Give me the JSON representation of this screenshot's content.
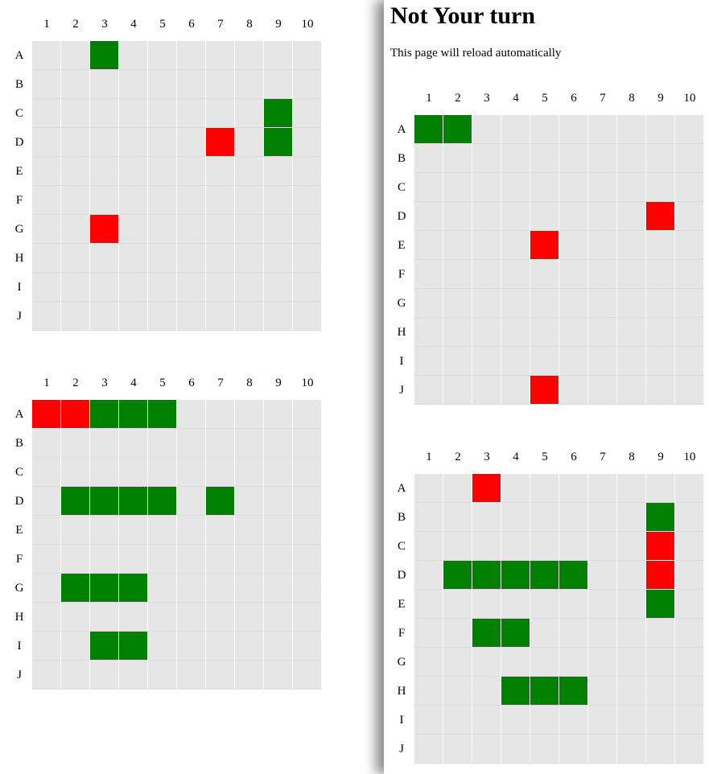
{
  "left_pane": {
    "boards": [
      {
        "columns": [
          "1",
          "2",
          "3",
          "4",
          "5",
          "6",
          "7",
          "8",
          "9",
          "10"
        ],
        "rows": [
          "A",
          "B",
          "C",
          "D",
          "E",
          "F",
          "G",
          "H",
          "I",
          "J"
        ],
        "cells": [
          [
            "",
            "",
            "ship",
            "",
            "",
            "",
            "",
            "",
            "",
            ""
          ],
          [
            "",
            "",
            "",
            "",
            "",
            "",
            "",
            "",
            "",
            ""
          ],
          [
            "",
            "",
            "",
            "",
            "",
            "",
            "",
            "",
            "ship",
            ""
          ],
          [
            "",
            "",
            "",
            "",
            "",
            "",
            "hit",
            "",
            "ship",
            ""
          ],
          [
            "",
            "",
            "",
            "",
            "",
            "",
            "",
            "",
            "",
            ""
          ],
          [
            "",
            "",
            "",
            "",
            "",
            "",
            "",
            "",
            "",
            ""
          ],
          [
            "",
            "",
            "hit",
            "",
            "",
            "",
            "",
            "",
            "",
            ""
          ],
          [
            "",
            "",
            "",
            "",
            "",
            "",
            "",
            "",
            "",
            ""
          ],
          [
            "",
            "",
            "",
            "",
            "",
            "",
            "",
            "",
            "",
            ""
          ],
          [
            "",
            "",
            "",
            "",
            "",
            "",
            "",
            "",
            "",
            ""
          ]
        ]
      },
      {
        "columns": [
          "1",
          "2",
          "3",
          "4",
          "5",
          "6",
          "7",
          "8",
          "9",
          "10"
        ],
        "rows": [
          "A",
          "B",
          "C",
          "D",
          "E",
          "F",
          "G",
          "H",
          "I",
          "J"
        ],
        "cells": [
          [
            "hit",
            "hit",
            "ship",
            "ship",
            "ship",
            "",
            "",
            "",
            "",
            ""
          ],
          [
            "",
            "",
            "",
            "",
            "",
            "",
            "",
            "",
            "",
            ""
          ],
          [
            "",
            "",
            "",
            "",
            "",
            "",
            "",
            "",
            "",
            ""
          ],
          [
            "",
            "ship",
            "ship",
            "ship",
            "ship",
            "",
            "ship",
            "",
            "",
            ""
          ],
          [
            "",
            "",
            "",
            "",
            "",
            "",
            "",
            "",
            "",
            ""
          ],
          [
            "",
            "",
            "",
            "",
            "",
            "",
            "",
            "",
            "",
            ""
          ],
          [
            "",
            "ship",
            "ship",
            "ship",
            "",
            "",
            "",
            "",
            "",
            ""
          ],
          [
            "",
            "",
            "",
            "",
            "",
            "",
            "",
            "",
            "",
            ""
          ],
          [
            "",
            "",
            "ship",
            "ship",
            "",
            "",
            "",
            "",
            "",
            ""
          ],
          [
            "",
            "",
            "",
            "",
            "",
            "",
            "",
            "",
            "",
            ""
          ]
        ]
      }
    ]
  },
  "right_pane": {
    "title": "Not Your turn",
    "subtitle": "This page will reload automatically",
    "boards": [
      {
        "columns": [
          "1",
          "2",
          "3",
          "4",
          "5",
          "6",
          "7",
          "8",
          "9",
          "10"
        ],
        "rows": [
          "A",
          "B",
          "C",
          "D",
          "E",
          "F",
          "G",
          "H",
          "I",
          "J"
        ],
        "cells": [
          [
            "ship",
            "ship",
            "",
            "",
            "",
            "",
            "",
            "",
            "",
            ""
          ],
          [
            "",
            "",
            "",
            "",
            "",
            "",
            "",
            "",
            "",
            ""
          ],
          [
            "",
            "",
            "",
            "",
            "",
            "",
            "",
            "",
            "",
            ""
          ],
          [
            "",
            "",
            "",
            "",
            "",
            "",
            "",
            "",
            "hit",
            ""
          ],
          [
            "",
            "",
            "",
            "",
            "hit",
            "",
            "",
            "",
            "",
            ""
          ],
          [
            "",
            "",
            "",
            "",
            "",
            "",
            "",
            "",
            "",
            ""
          ],
          [
            "",
            "",
            "",
            "",
            "",
            "",
            "",
            "",
            "",
            ""
          ],
          [
            "",
            "",
            "",
            "",
            "",
            "",
            "",
            "",
            "",
            ""
          ],
          [
            "",
            "",
            "",
            "",
            "",
            "",
            "",
            "",
            "",
            ""
          ],
          [
            "",
            "",
            "",
            "",
            "hit",
            "",
            "",
            "",
            "",
            ""
          ]
        ]
      },
      {
        "columns": [
          "1",
          "2",
          "3",
          "4",
          "5",
          "6",
          "7",
          "8",
          "9",
          "10"
        ],
        "rows": [
          "A",
          "B",
          "C",
          "D",
          "E",
          "F",
          "G",
          "H",
          "I",
          "J"
        ],
        "cells": [
          [
            "",
            "",
            "hit",
            "",
            "",
            "",
            "",
            "",
            "",
            ""
          ],
          [
            "",
            "",
            "",
            "",
            "",
            "",
            "",
            "",
            "ship",
            ""
          ],
          [
            "",
            "",
            "",
            "",
            "",
            "",
            "",
            "",
            "hit",
            ""
          ],
          [
            "",
            "ship",
            "ship",
            "ship",
            "ship",
            "ship",
            "",
            "",
            "hit",
            ""
          ],
          [
            "",
            "",
            "",
            "",
            "",
            "",
            "",
            "",
            "ship",
            ""
          ],
          [
            "",
            "",
            "ship",
            "ship",
            "",
            "",
            "",
            "",
            "",
            ""
          ],
          [
            "",
            "",
            "",
            "",
            "",
            "",
            "",
            "",
            "",
            ""
          ],
          [
            "",
            "",
            "",
            "ship",
            "ship",
            "ship",
            "",
            "",
            "",
            ""
          ],
          [
            "",
            "",
            "",
            "",
            "",
            "",
            "",
            "",
            "",
            ""
          ],
          [
            "",
            "",
            "",
            "",
            "",
            "",
            "",
            "",
            "",
            ""
          ]
        ]
      }
    ]
  },
  "colors": {
    "hit": "#ff0000",
    "ship": "#008000",
    "empty": "#e6e6e6"
  }
}
